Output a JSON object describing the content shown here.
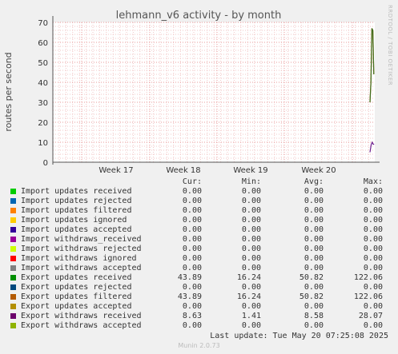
{
  "chart_data": {
    "type": "line",
    "title": "lehmann_v6 activity - by month",
    "ylabel": "routes per second",
    "xlabel": "",
    "ylim": [
      0,
      70
    ],
    "yticks": [
      0,
      10,
      20,
      30,
      40,
      50,
      60,
      70
    ],
    "xticks": [
      "Week 17",
      "Week 18",
      "Week 19",
      "Week 20"
    ],
    "grid": true,
    "series": [
      {
        "name": "Export updates filtered",
        "color": "#c8891a",
        "points": [
          [
            0.985,
            30
          ],
          [
            0.988,
            40
          ],
          [
            0.991,
            67
          ],
          [
            0.994,
            66
          ],
          [
            0.997,
            44
          ]
        ]
      },
      {
        "name": "Export updates received",
        "color": "#3d6b1e",
        "points": [
          [
            0.985,
            30
          ],
          [
            0.988,
            40
          ],
          [
            0.991,
            67
          ],
          [
            0.994,
            66
          ],
          [
            0.997,
            44
          ]
        ]
      },
      {
        "name": "Export withdraws received",
        "color": "#6b1e8e",
        "points": [
          [
            0.985,
            5
          ],
          [
            0.989,
            9
          ],
          [
            0.992,
            10
          ],
          [
            0.995,
            9
          ],
          [
            0.998,
            9
          ]
        ]
      }
    ]
  },
  "side_label": "RRDTOOL / TOBI OETIKER",
  "legend": {
    "headers": {
      "cur": "Cur:",
      "min": "Min:",
      "avg": "Avg:",
      "max": "Max:"
    },
    "rows": [
      {
        "name": "Import updates received",
        "color": "#00cc00",
        "cur": "0.00",
        "min": "0.00",
        "avg": "0.00",
        "max": "0.00"
      },
      {
        "name": "Import updates rejected",
        "color": "#0066b3",
        "cur": "0.00",
        "min": "0.00",
        "avg": "0.00",
        "max": "0.00"
      },
      {
        "name": "Import updates filtered",
        "color": "#ff8000",
        "cur": "0.00",
        "min": "0.00",
        "avg": "0.00",
        "max": "0.00"
      },
      {
        "name": "Import updates ignored",
        "color": "#ffcc00",
        "cur": "0.00",
        "min": "0.00",
        "avg": "0.00",
        "max": "0.00"
      },
      {
        "name": "Import updates accepted",
        "color": "#330099",
        "cur": "0.00",
        "min": "0.00",
        "avg": "0.00",
        "max": "0.00"
      },
      {
        "name": "Import withdraws_received",
        "color": "#990099",
        "cur": "0.00",
        "min": "0.00",
        "avg": "0.00",
        "max": "0.00"
      },
      {
        "name": "Import withdraws rejected",
        "color": "#ccff00",
        "cur": "0.00",
        "min": "0.00",
        "avg": "0.00",
        "max": "0.00"
      },
      {
        "name": "Import withdraws ignored",
        "color": "#ff0000",
        "cur": "0.00",
        "min": "0.00",
        "avg": "0.00",
        "max": "0.00"
      },
      {
        "name": "Import withdraws accepted",
        "color": "#808080",
        "cur": "0.00",
        "min": "0.00",
        "avg": "0.00",
        "max": "0.00"
      },
      {
        "name": "Export updates received",
        "color": "#008f00",
        "cur": "43.89",
        "min": "16.24",
        "avg": "50.82",
        "max": "122.06"
      },
      {
        "name": "Export updates rejected",
        "color": "#00487d",
        "cur": "0.00",
        "min": "0.00",
        "avg": "0.00",
        "max": "0.00"
      },
      {
        "name": "Export updates filtered",
        "color": "#b35a00",
        "cur": "43.89",
        "min": "16.24",
        "avg": "50.82",
        "max": "122.06"
      },
      {
        "name": "Export updates accepted",
        "color": "#b38f00",
        "cur": "0.00",
        "min": "0.00",
        "avg": "0.00",
        "max": "0.00"
      },
      {
        "name": "Export withdraws received",
        "color": "#6b006b",
        "cur": "8.63",
        "min": "1.41",
        "avg": "8.58",
        "max": "28.07"
      },
      {
        "name": "Export withdraws accepted",
        "color": "#8fb300",
        "cur": "0.00",
        "min": "0.00",
        "avg": "0.00",
        "max": "0.00"
      }
    ],
    "last_update": "Last update: Tue May 20 07:25:08 2025"
  },
  "footer": "Munin 2.0.73"
}
